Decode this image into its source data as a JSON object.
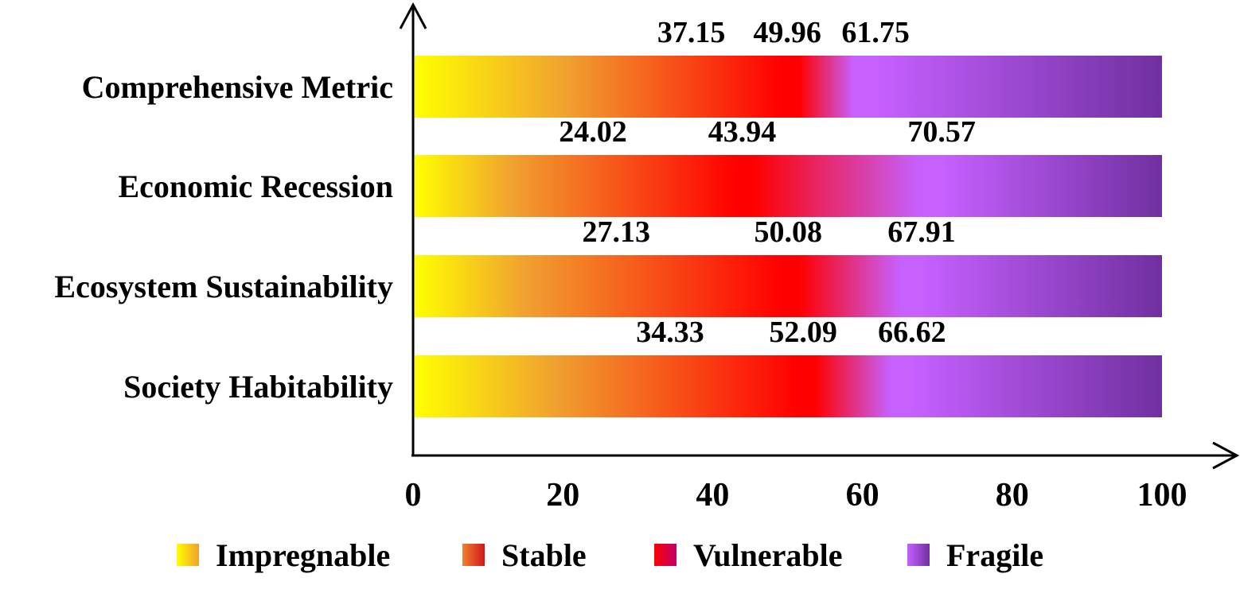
{
  "chart_data": {
    "type": "bar",
    "orientation": "horizontal",
    "categories": [
      "Comprehensive Metric",
      "Economic Recession",
      "Ecosystem Sustainability",
      "Society Habitability"
    ],
    "thresholds": [
      {
        "category": "Comprehensive Metric",
        "values": [
          37.15,
          49.96,
          61.75
        ],
        "labels": [
          "37.15",
          "49.96",
          "61.75"
        ]
      },
      {
        "category": "Economic Recession",
        "values": [
          24.02,
          43.94,
          70.57
        ],
        "labels": [
          "24.02",
          "43.94",
          "70.57"
        ]
      },
      {
        "category": "Ecosystem Sustainability",
        "values": [
          27.13,
          50.08,
          67.91
        ],
        "labels": [
          "27.13",
          "50.08",
          "67.91"
        ]
      },
      {
        "category": "Society Habitability",
        "values": [
          34.33,
          52.09,
          66.62
        ],
        "labels": [
          "34.33",
          "52.09",
          "66.62"
        ]
      }
    ],
    "xlim": [
      0,
      100
    ],
    "xticks": [
      "0",
      "20",
      "40",
      "60",
      "80",
      "100"
    ],
    "legend": [
      {
        "name": "Impregnable",
        "colors": [
          "#ffff00",
          "#f0a030"
        ]
      },
      {
        "name": "Stable",
        "colors": [
          "#f08030",
          "#d01818"
        ]
      },
      {
        "name": "Vulnerable",
        "colors": [
          "#ff0000",
          "#c0006a"
        ]
      },
      {
        "name": "Fragile",
        "colors": [
          "#c660ff",
          "#7030a0"
        ]
      }
    ],
    "legend_position": "bottom",
    "colors": {
      "impregnable": "#ffff00",
      "stable": "#f0a030",
      "vulnerable": "#ff0000",
      "fragile_light": "#c660ff",
      "fragile_dark": "#7030a0"
    }
  }
}
